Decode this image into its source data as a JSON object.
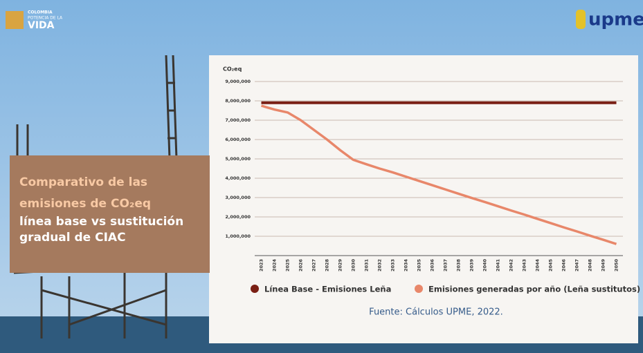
{
  "slide": {
    "logo_left": [
      "COLOMBIA",
      "POTENCIA DE LA",
      "VIDA"
    ],
    "logo_right": "upme",
    "title_lines": [
      "Comparativo de las",
      "emisiones de CO₂eq",
      "línea base vs sustitución",
      "gradual de CIAC"
    ],
    "source": "Fuente: Cálculos UPME, 2022."
  },
  "chart_data": {
    "type": "line",
    "y_label": "CO₂eq",
    "categories": [
      "2023",
      "2024",
      "2025",
      "2026",
      "2027",
      "2028",
      "2029",
      "2030",
      "2031",
      "2032",
      "2033",
      "2034",
      "2035",
      "2036",
      "2037",
      "2038",
      "2039",
      "2040",
      "2041",
      "2042",
      "2043",
      "2044",
      "2045",
      "2046",
      "2047",
      "2048",
      "2049",
      "2050"
    ],
    "series": [
      {
        "name": "Línea Base - Emisiones Leña",
        "color": "#7a1f14",
        "values": [
          7900000,
          7900000,
          7900000,
          7900000,
          7900000,
          7900000,
          7900000,
          7900000,
          7900000,
          7900000,
          7900000,
          7900000,
          7900000,
          7900000,
          7900000,
          7900000,
          7900000,
          7900000,
          7900000,
          7900000,
          7900000,
          7900000,
          7900000,
          7900000,
          7900000,
          7900000,
          7900000,
          7900000
        ]
      },
      {
        "name": "Emisiones generadas por año (Leña sustitutos)",
        "color": "#e8876a",
        "values": [
          7750000,
          7550000,
          7400000,
          7000000,
          6500000,
          6000000,
          5450000,
          4950000,
          4720000,
          4500000,
          4300000,
          4080000,
          3860000,
          3640000,
          3420000,
          3200000,
          2980000,
          2770000,
          2550000,
          2330000,
          2120000,
          1900000,
          1680000,
          1460000,
          1250000,
          1030000,
          820000,
          600000
        ]
      }
    ],
    "ylim": [
      0,
      9000000
    ],
    "yticks": [
      {
        "value": 1000000,
        "label": "1,000,000"
      },
      {
        "value": 2000000,
        "label": "2,000,000"
      },
      {
        "value": 3000000,
        "label": "3,000,000"
      },
      {
        "value": 4000000,
        "label": "4,000,000"
      },
      {
        "value": 5000000,
        "label": "5,000,000"
      },
      {
        "value": 6000000,
        "label": "6,000,000"
      },
      {
        "value": 7000000,
        "label": "7,000,000"
      },
      {
        "value": 8000000,
        "label": "8,000,000"
      },
      {
        "value": 9000000,
        "label": "9,000,000"
      }
    ],
    "grid": true
  }
}
